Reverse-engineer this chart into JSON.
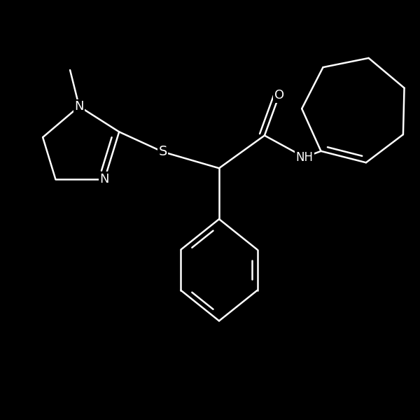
{
  "background_color": "#000000",
  "line_color": "#ffffff",
  "line_width": 1.8,
  "figsize": [
    6,
    6
  ],
  "dpi": 100,
  "xlim": [
    -1.15,
    1.15
  ],
  "ylim": [
    -1.2,
    1.1
  ]
}
